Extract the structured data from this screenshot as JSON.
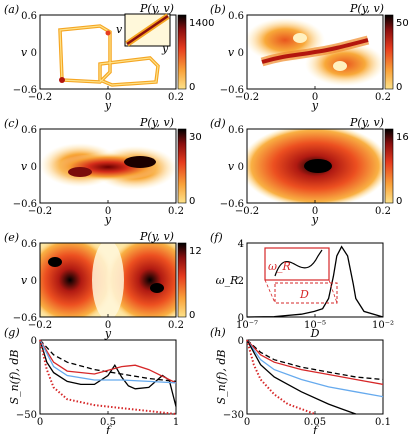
{
  "figure": {
    "panels": [
      {
        "id": "a",
        "label": "(a)",
        "title": "P(y, v)",
        "colorbar_max": "1400",
        "colorbar_min": "0"
      },
      {
        "id": "b",
        "label": "(b)",
        "title": "P(y, v)",
        "colorbar_max": "50",
        "colorbar_min": "0"
      },
      {
        "id": "c",
        "label": "(c)",
        "title": "P(y, v)",
        "colorbar_max": "30",
        "colorbar_min": "0"
      },
      {
        "id": "d",
        "label": "(d)",
        "title": "P(y, v)",
        "colorbar_max": "16",
        "colorbar_min": "0"
      },
      {
        "id": "e",
        "label": "(e)",
        "title": "P(y, v)",
        "colorbar_max": "12",
        "colorbar_min": "0"
      },
      {
        "id": "f",
        "label": "(f)",
        "title": ""
      },
      {
        "id": "g",
        "label": "(g)",
        "title": ""
      },
      {
        "id": "h",
        "label": "(h)",
        "title": ""
      }
    ],
    "inset_a": {
      "xlabel": "y",
      "ylabel": "v"
    },
    "inset_f": {
      "ylabel": "ω_R",
      "xlabel": "D"
    }
  },
  "chart_data": [
    {
      "panel": "a",
      "type": "heatmap",
      "xlabel": "y",
      "ylabel": "v",
      "xlim": [
        -0.2,
        0.2
      ],
      "ylim": [
        -0.6,
        0.6
      ],
      "xticks": [
        "−0.2",
        "0",
        "0.2"
      ],
      "yticks": [
        "0.6",
        "0",
        "−0.6"
      ],
      "colorbar": [
        0,
        1400
      ]
    },
    {
      "panel": "b",
      "type": "heatmap",
      "xlabel": "y",
      "ylabel": "v",
      "xlim": [
        -0.2,
        0.2
      ],
      "ylim": [
        -0.6,
        0.6
      ],
      "xticks": [
        "−0.2",
        "0",
        "0.2"
      ],
      "yticks": [
        "0.6",
        "0",
        "−0.6"
      ],
      "colorbar": [
        0,
        50
      ]
    },
    {
      "panel": "c",
      "type": "heatmap",
      "xlabel": "y",
      "ylabel": "v",
      "xlim": [
        -0.2,
        0.2
      ],
      "ylim": [
        -0.6,
        0.6
      ],
      "xticks": [
        "−0.2",
        "0",
        "0.2"
      ],
      "yticks": [
        "0.6",
        "0",
        "−0.6"
      ],
      "colorbar": [
        0,
        30
      ]
    },
    {
      "panel": "d",
      "type": "heatmap",
      "xlabel": "y",
      "ylabel": "v",
      "xlim": [
        -0.2,
        0.2
      ],
      "ylim": [
        -0.6,
        0.6
      ],
      "xticks": [
        "−0.2",
        "0",
        "0.2"
      ],
      "yticks": [
        "0.6",
        "0",
        "−0.6"
      ],
      "colorbar": [
        0,
        16
      ]
    },
    {
      "panel": "e",
      "type": "heatmap",
      "xlabel": "y",
      "ylabel": "v",
      "xlim": [
        -0.2,
        0.2
      ],
      "ylim": [
        -0.6,
        0.6
      ],
      "xticks": [
        "−0.2",
        "0",
        "0.2"
      ],
      "yticks": [
        "0.6",
        "0",
        "−0.6"
      ],
      "colorbar": [
        0,
        12
      ]
    },
    {
      "panel": "f",
      "type": "line",
      "xlabel": "D",
      "ylabel": "ω_R",
      "xscale": "log",
      "xlim": [
        1e-07,
        0.01
      ],
      "ylim": [
        0,
        4
      ],
      "xticks": [
        "10^-7",
        "10^-5",
        "10^-2"
      ],
      "yticks": [
        "4",
        "2",
        "0"
      ],
      "series": [
        {
          "x": [
            1e-07,
            1e-06,
            1e-05,
            3e-05,
            6e-05,
            0.0001,
            0.00015,
            0.0002,
            0.0003,
            0.0005,
            0.0008,
            0.001,
            0.002,
            0.01
          ],
          "y": [
            0.0,
            0.02,
            0.15,
            0.3,
            0.45,
            1.0,
            2.2,
            3.3,
            3.8,
            3.3,
            1.8,
            1.0,
            0.3,
            0.0
          ]
        }
      ]
    },
    {
      "panel": "g",
      "type": "line",
      "xlabel": "f",
      "ylabel": "S_n(f), dB",
      "xlim": [
        0,
        1
      ],
      "ylim": [
        -50,
        0
      ],
      "xticks": [
        "0",
        "0.5",
        "1"
      ],
      "yticks": [
        "0",
        "−50"
      ],
      "series": [
        {
          "color": "#000000",
          "style": "solid",
          "x": [
            0,
            0.05,
            0.1,
            0.2,
            0.3,
            0.4,
            0.5,
            0.55,
            0.6,
            0.65,
            0.7,
            0.8,
            0.9,
            0.95,
            1.0
          ],
          "y": [
            0,
            -15,
            -22,
            -28,
            -30,
            -30,
            -24,
            -17,
            -25,
            -31,
            -33,
            -32,
            -24,
            -27,
            -45
          ]
        },
        {
          "color": "#000000",
          "style": "dashed",
          "x": [
            0,
            0.1,
            0.2,
            0.4,
            0.6,
            0.8,
            1.0
          ],
          "y": [
            0,
            -10,
            -15,
            -20,
            -23,
            -26,
            -28
          ]
        },
        {
          "color": "#d62728",
          "style": "solid",
          "x": [
            0,
            0.1,
            0.2,
            0.4,
            0.6,
            0.7,
            0.8,
            1.0
          ],
          "y": [
            0,
            -15,
            -21,
            -23,
            -18,
            -17,
            -20,
            -29
          ]
        },
        {
          "color": "#66aaee",
          "style": "solid",
          "x": [
            0,
            0.1,
            0.2,
            0.4,
            0.6,
            0.8,
            1.0
          ],
          "y": [
            0,
            -18,
            -24,
            -27,
            -27,
            -28,
            -29
          ]
        },
        {
          "color": "#d62728",
          "style": "dotted",
          "x": [
            0,
            0.05,
            0.1,
            0.2,
            0.4,
            0.6,
            0.8,
            1.0
          ],
          "y": [
            0,
            -20,
            -32,
            -40,
            -44,
            -46,
            -48,
            -50
          ]
        }
      ]
    },
    {
      "panel": "h",
      "type": "line",
      "xlabel": "f",
      "ylabel": "S_n(f), dB",
      "xlim": [
        0,
        0.1
      ],
      "ylim": [
        -30,
        0
      ],
      "xticks": [
        "0",
        "0.05",
        "0.1"
      ],
      "yticks": [
        "0",
        "−30"
      ],
      "series": [
        {
          "color": "#000000",
          "style": "dashed",
          "x": [
            0,
            0.01,
            0.02,
            0.04,
            0.06,
            0.08,
            0.1
          ],
          "y": [
            0,
            -5,
            -8,
            -11,
            -13,
            -15,
            -16
          ]
        },
        {
          "color": "#d62728",
          "style": "solid",
          "x": [
            0,
            0.01,
            0.02,
            0.04,
            0.06,
            0.08,
            0.1
          ],
          "y": [
            0,
            -6,
            -9,
            -12,
            -14,
            -16,
            -18
          ]
        },
        {
          "color": "#66aaee",
          "style": "solid",
          "x": [
            0,
            0.01,
            0.02,
            0.04,
            0.06,
            0.08,
            0.1
          ],
          "y": [
            0,
            -8,
            -12,
            -16,
            -19,
            -21,
            -23
          ]
        },
        {
          "color": "#000000",
          "style": "solid",
          "x": [
            0,
            0.01,
            0.02,
            0.04,
            0.06,
            0.07,
            0.08
          ],
          "y": [
            0,
            -10,
            -15,
            -21,
            -26,
            -28,
            -30
          ]
        },
        {
          "color": "#d62728",
          "style": "dotted",
          "x": [
            0,
            0.005,
            0.01,
            0.02,
            0.03,
            0.05
          ],
          "y": [
            0,
            -10,
            -16,
            -22,
            -26,
            -30
          ]
        }
      ]
    }
  ]
}
